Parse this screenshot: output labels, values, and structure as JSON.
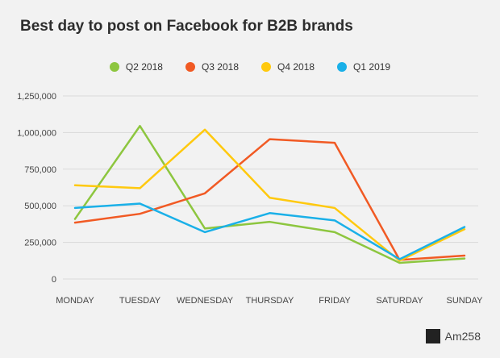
{
  "chart_data": {
    "type": "line",
    "title": "Best day to post on Facebook for B2B brands",
    "categories": [
      "MONDAY",
      "TUESDAY",
      "WEDNESDAY",
      "THURSDAY",
      "FRIDAY",
      "SATURDAY",
      "SUNDAY"
    ],
    "ylim": [
      0,
      1250000
    ],
    "yticks": [
      0,
      250000,
      500000,
      750000,
      1000000,
      1250000
    ],
    "ytick_labels": [
      "0",
      "250,000",
      "500,000",
      "750,000",
      "1,000,000",
      "1,250,000"
    ],
    "grid": true,
    "legend_position": "top",
    "series": [
      {
        "name": "Q2 2018",
        "color": "#8dc63f",
        "values": [
          410000,
          1045000,
          345000,
          390000,
          320000,
          110000,
          140000
        ]
      },
      {
        "name": "Q3 2018",
        "color": "#f15a24",
        "values": [
          385000,
          445000,
          585000,
          955000,
          930000,
          130000,
          160000
        ]
      },
      {
        "name": "Q4 2018",
        "color": "#ffc90e",
        "values": [
          640000,
          620000,
          1020000,
          555000,
          485000,
          125000,
          340000
        ]
      },
      {
        "name": "Q1 2019",
        "color": "#1ab0e8",
        "values": [
          485000,
          515000,
          320000,
          450000,
          400000,
          135000,
          355000
        ]
      }
    ]
  },
  "watermark": {
    "text": "Am258"
  }
}
